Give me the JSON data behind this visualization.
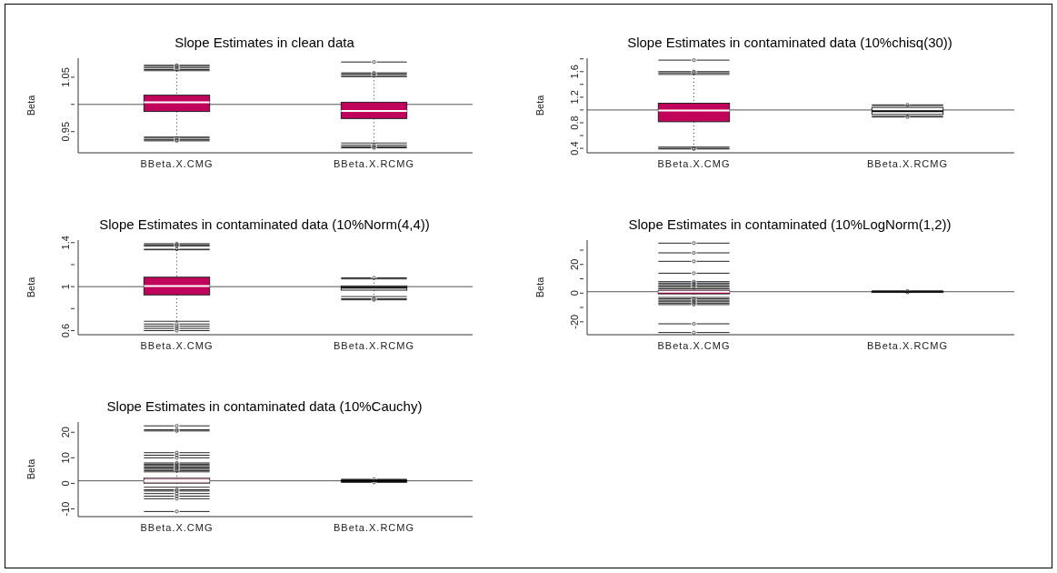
{
  "chart_data": [
    {
      "type": "box",
      "title": "Slope Estimates in clean data",
      "ylabel": "Beta",
      "categories": [
        "BBeta.X.CMG",
        "BBeta.X.RCMG"
      ],
      "colors": [
        "#c0045c",
        "#c0045c"
      ],
      "ylim": [
        0.911,
        1.085
      ],
      "yticks": [
        0.95,
        {
          "value": 1.0,
          "label": null
        },
        1.05
      ],
      "ref_lines": [
        {
          "axis": "y",
          "value": 1
        }
      ],
      "boxes": [
        {
          "low": 0.94,
          "q1": 0.987,
          "median": 1.004,
          "q3": 1.017,
          "high": 1.062,
          "outliers": [
            1.064,
            1.067,
            1.07,
            1.072,
            0.938,
            0.935,
            0.933
          ]
        },
        {
          "low": 0.929,
          "q1": 0.974,
          "median": 0.988,
          "q3": 1.004,
          "high": 1.051,
          "outliers": [
            1.053,
            1.056,
            1.058,
            1.078,
            0.925,
            0.922,
            0.92
          ]
        }
      ]
    },
    {
      "type": "box",
      "title": "Slope Estimates in contaminated data (10%chisq(30))",
      "ylabel": "Beta",
      "categories": [
        "BBeta.X.CMG",
        "BBeta.X.RCMG"
      ],
      "colors": [
        "#c0045c",
        "#ffffff"
      ],
      "ylim": [
        0.33,
        1.81
      ],
      "yticks": [
        0.4,
        {
          "value": 0.6,
          "label": null
        },
        0.8,
        {
          "value": 1.0,
          "label": null
        },
        1.2,
        {
          "value": 1.4,
          "label": null
        },
        1.6,
        {
          "value": 1.8,
          "label": null
        }
      ],
      "ref_lines": [
        {
          "axis": "y",
          "value": 1
        }
      ],
      "boxes": [
        {
          "low": 0.42,
          "q1": 0.816,
          "median": 0.99,
          "q3": 1.106,
          "high": 1.556,
          "outliers": [
            1.58,
            1.6,
            1.78,
            0.4,
            0.39
          ]
        },
        {
          "low": 0.9,
          "q1": 0.93,
          "median": 0.98,
          "q3": 1.04,
          "high": 1.07,
          "outliers": [
            1.08,
            0.89
          ]
        }
      ]
    },
    {
      "type": "box",
      "title": "Slope Estimates in  contaminated data (10%Norm(4,4))",
      "ylabel": "Beta",
      "categories": [
        "BBeta.X.CMG",
        "BBeta.X.RCMG"
      ],
      "colors": [
        "#c0045c",
        "#ffffff"
      ],
      "ylim": [
        0.563,
        1.423
      ],
      "yticks": [
        0.6,
        {
          "value": 0.8,
          "label": null
        },
        1.0,
        {
          "value": 1.2,
          "label": null
        },
        1.4
      ],
      "ref_lines": [
        {
          "axis": "y",
          "value": 1
        }
      ],
      "boxes": [
        {
          "low": 0.685,
          "q1": 0.925,
          "median": 1.005,
          "q3": 1.086,
          "high": 1.335,
          "outliers": [
            1.34,
            1.37,
            1.38,
            1.39,
            0.66,
            0.64,
            0.62,
            0.6
          ]
        },
        {
          "low": 0.91,
          "q1": 0.968,
          "median": 0.99,
          "q3": 1.006,
          "high": 1.07,
          "outliers": [
            1.08,
            0.89,
            0.88
          ]
        }
      ]
    },
    {
      "type": "box",
      "title": "Slope Estimates in contaminated (10%LogNorm(1,2))",
      "ylabel": "Beta",
      "categories": [
        "BBeta.X.CMG",
        "BBeta.X.RCMG"
      ],
      "colors": [
        "#c0045c",
        "#ffffff"
      ],
      "ylim": [
        -29,
        37
      ],
      "yticks": [
        -20,
        {
          "value": -10,
          "label": null
        },
        0,
        {
          "value": 10,
          "label": null
        },
        20,
        {
          "value": 30,
          "label": null
        }
      ],
      "ref_lines": [
        {
          "axis": "y",
          "value": 1
        }
      ],
      "boxes": [
        {
          "low": -3,
          "q1": -0.5,
          "median": 1,
          "q3": 2,
          "high": 3,
          "outliers": [
            4,
            5,
            6,
            7,
            8,
            13.9,
            22.2,
            28.1,
            34.9,
            -4,
            -5,
            -6,
            -7,
            -8,
            -21.4,
            -27.5
          ]
        },
        {
          "low": 0.7,
          "q1": 0.9,
          "median": 1,
          "q3": 1.1,
          "high": 1.3,
          "outliers": [
            1.5,
            0.5
          ]
        }
      ]
    },
    {
      "type": "box",
      "title": "Slope Estimates in contaminated data (10%Cauchy)",
      "ylabel": "Beta",
      "categories": [
        "BBeta.X.CMG",
        "BBeta.X.RCMG"
      ],
      "colors": [
        "#f4c8dc",
        "#ffffff"
      ],
      "ylim": [
        -13,
        24
      ],
      "yticks": [
        -10,
        0,
        10,
        20
      ],
      "ref_lines": [
        {
          "axis": "y",
          "value": 1
        }
      ],
      "boxes": [
        {
          "low": -1.5,
          "q1": 0.1,
          "median": 1,
          "q3": 2,
          "high": 4.5,
          "outliers": [
            5,
            5.5,
            6,
            6.5,
            7,
            7.5,
            8,
            10,
            11,
            12,
            20.5,
            21,
            22.5,
            -2.5,
            -3,
            -4,
            -5,
            -6,
            -11
          ]
        },
        {
          "low": 0.6,
          "q1": 0.9,
          "median": 1,
          "q3": 1.1,
          "high": 1.4,
          "outliers": [
            1.6,
            0.4
          ]
        }
      ]
    }
  ]
}
